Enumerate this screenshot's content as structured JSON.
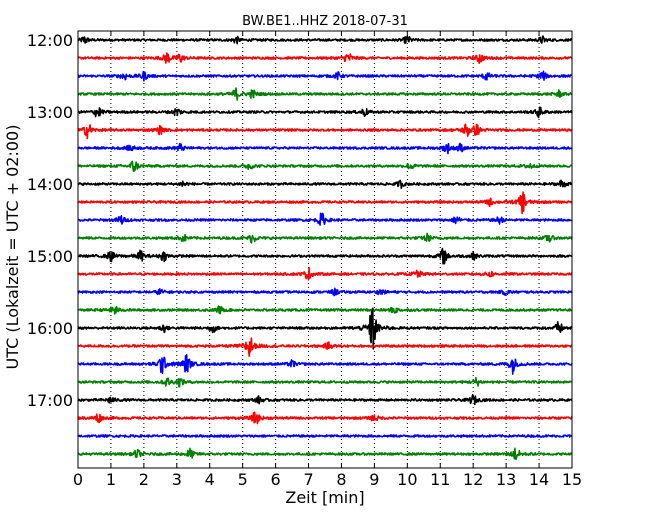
{
  "chart_data": {
    "type": "line",
    "title": "BW.BE1..HHZ 2018-07-31",
    "xlabel": "Zeit  [min]",
    "ylabel": "UTC (Lokalzeit = UTC + 02:00)",
    "xlim": [
      0,
      15
    ],
    "x_ticks": [
      "0",
      "1",
      "2",
      "3",
      "4",
      "5",
      "6",
      "7",
      "8",
      "9",
      "10",
      "11",
      "12",
      "13",
      "14",
      "15"
    ],
    "y_ticks": [
      "12:00",
      "13:00",
      "14:00",
      "15:00",
      "16:00",
      "17:00"
    ],
    "grid": "vertical dotted lines at each minute",
    "series_colors": [
      "#000000",
      "#ff0000",
      "#0000ff",
      "#008000"
    ],
    "series": [
      {
        "start": "12:00",
        "events": [
          {
            "x": 0.2,
            "amp": 0.35
          },
          {
            "x": 4.8,
            "amp": 0.3
          },
          {
            "x": 10.0,
            "amp": 0.35
          },
          {
            "x": 14.1,
            "amp": 0.3
          }
        ]
      },
      {
        "start": "12:15",
        "events": [
          {
            "x": 2.7,
            "amp": 0.5
          },
          {
            "x": 3.1,
            "amp": 0.4
          },
          {
            "x": 8.2,
            "amp": 0.55
          },
          {
            "x": 12.2,
            "amp": 0.45
          }
        ]
      },
      {
        "start": "12:30",
        "events": [
          {
            "x": 1.4,
            "amp": 0.35
          },
          {
            "x": 2.0,
            "amp": 0.35
          },
          {
            "x": 7.9,
            "amp": 0.3
          },
          {
            "x": 12.4,
            "amp": 0.35
          },
          {
            "x": 14.1,
            "amp": 0.45
          }
        ]
      },
      {
        "start": "12:45",
        "events": [
          {
            "x": 4.8,
            "amp": 0.5
          },
          {
            "x": 5.3,
            "amp": 0.35
          },
          {
            "x": 14.6,
            "amp": 0.3
          }
        ]
      },
      {
        "start": "13:00",
        "events": [
          {
            "x": 0.6,
            "amp": 0.55
          },
          {
            "x": 3.0,
            "amp": 0.4
          },
          {
            "x": 8.7,
            "amp": 0.35
          },
          {
            "x": 14.0,
            "amp": 0.45
          }
        ]
      },
      {
        "start": "13:15",
        "events": [
          {
            "x": 0.3,
            "amp": 0.7
          },
          {
            "x": 2.5,
            "amp": 0.35
          },
          {
            "x": 11.8,
            "amp": 0.6
          },
          {
            "x": 12.1,
            "amp": 0.45
          }
        ]
      },
      {
        "start": "13:30",
        "events": [
          {
            "x": 1.6,
            "amp": 0.3
          },
          {
            "x": 3.1,
            "amp": 0.35
          },
          {
            "x": 11.2,
            "amp": 0.45
          },
          {
            "x": 11.6,
            "amp": 0.35
          }
        ]
      },
      {
        "start": "13:45",
        "events": [
          {
            "x": 1.7,
            "amp": 0.6
          },
          {
            "x": 5.2,
            "amp": 0.3
          },
          {
            "x": 10.1,
            "amp": 0.3
          },
          {
            "x": 13.7,
            "amp": 0.3
          }
        ]
      },
      {
        "start": "14:00",
        "events": [
          {
            "x": 3.2,
            "amp": 0.3
          },
          {
            "x": 9.8,
            "amp": 0.3
          },
          {
            "x": 14.7,
            "amp": 0.35
          }
        ]
      },
      {
        "start": "14:15",
        "events": [
          {
            "x": 12.5,
            "amp": 0.3
          },
          {
            "x": 13.5,
            "amp": 1.0
          }
        ]
      },
      {
        "start": "14:30",
        "events": [
          {
            "x": 1.3,
            "amp": 0.45
          },
          {
            "x": 7.4,
            "amp": 0.6
          },
          {
            "x": 11.5,
            "amp": 0.35
          },
          {
            "x": 12.8,
            "amp": 0.3
          }
        ]
      },
      {
        "start": "14:45",
        "events": [
          {
            "x": 3.2,
            "amp": 0.3
          },
          {
            "x": 5.3,
            "amp": 0.4
          },
          {
            "x": 10.6,
            "amp": 0.35
          },
          {
            "x": 14.3,
            "amp": 0.35
          }
        ]
      },
      {
        "start": "15:00",
        "events": [
          {
            "x": 1.0,
            "amp": 0.45
          },
          {
            "x": 1.9,
            "amp": 0.45
          },
          {
            "x": 2.6,
            "amp": 0.4
          },
          {
            "x": 11.1,
            "amp": 0.7
          },
          {
            "x": 12.0,
            "amp": 0.3
          }
        ]
      },
      {
        "start": "15:15",
        "events": [
          {
            "x": 7.0,
            "amp": 0.55
          },
          {
            "x": 10.3,
            "amp": 0.4
          },
          {
            "x": 12.5,
            "amp": 0.3
          }
        ]
      },
      {
        "start": "15:30",
        "events": [
          {
            "x": 2.5,
            "amp": 0.25
          },
          {
            "x": 7.8,
            "amp": 0.25
          },
          {
            "x": 9.2,
            "amp": 0.25
          },
          {
            "x": 13.0,
            "amp": 0.25
          }
        ]
      },
      {
        "start": "15:45",
        "events": [
          {
            "x": 1.1,
            "amp": 0.45
          },
          {
            "x": 4.3,
            "amp": 0.3
          },
          {
            "x": 9.6,
            "amp": 0.3
          }
        ]
      },
      {
        "start": "16:00",
        "events": [
          {
            "x": 2.6,
            "amp": 0.35
          },
          {
            "x": 4.1,
            "amp": 0.35
          },
          {
            "x": 8.95,
            "amp": 2.2
          },
          {
            "x": 14.6,
            "amp": 0.55
          }
        ]
      },
      {
        "start": "16:15",
        "events": [
          {
            "x": 5.2,
            "amp": 1.2
          },
          {
            "x": 7.6,
            "amp": 0.3
          }
        ]
      },
      {
        "start": "16:30",
        "events": [
          {
            "x": 2.55,
            "amp": 0.9
          },
          {
            "x": 3.3,
            "amp": 0.85
          },
          {
            "x": 6.5,
            "amp": 0.3
          },
          {
            "x": 13.2,
            "amp": 0.8
          }
        ]
      },
      {
        "start": "16:45",
        "events": [
          {
            "x": 2.7,
            "amp": 0.35
          },
          {
            "x": 3.1,
            "amp": 0.35
          },
          {
            "x": 12.1,
            "amp": 0.35
          }
        ]
      },
      {
        "start": "17:00",
        "events": [
          {
            "x": 1.0,
            "amp": 0.3
          },
          {
            "x": 5.5,
            "amp": 0.3
          },
          {
            "x": 12.0,
            "amp": 0.45
          }
        ]
      },
      {
        "start": "17:15",
        "events": [
          {
            "x": 0.6,
            "amp": 0.45
          },
          {
            "x": 5.4,
            "amp": 0.6
          },
          {
            "x": 9.0,
            "amp": 0.3
          }
        ]
      },
      {
        "start": "17:30",
        "events": []
      },
      {
        "start": "17:45",
        "events": [
          {
            "x": 1.8,
            "amp": 0.35
          },
          {
            "x": 3.4,
            "amp": 0.45
          },
          {
            "x": 13.3,
            "amp": 0.6
          }
        ]
      }
    ]
  }
}
